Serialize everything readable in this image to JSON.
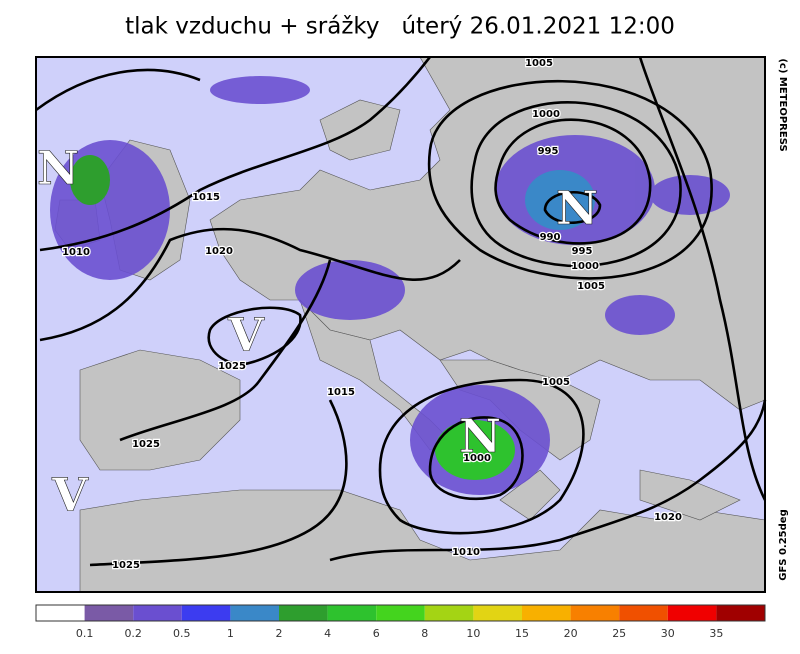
{
  "title": "tlak vzduchu + srážky   úterý 26.01.2021 12:00",
  "credit": "(c) METEOPRESS",
  "model": "GFS 0.25deg",
  "sea_color": "#cfd0fa",
  "land_color": "#c3c3c3",
  "precip_color": "#6a50d0",
  "pressure_centers": [
    "N",
    "N",
    "N",
    "V",
    "V"
  ],
  "isobar_labels": [
    1005,
    1000,
    995,
    990,
    995,
    1000,
    1005,
    1015,
    1010,
    1020,
    1025,
    1015,
    1025,
    1005,
    1000,
    1010,
    1020,
    1025
  ],
  "legend": {
    "colors": [
      "#ffffff",
      "#7a5aa6",
      "#6a4fd0",
      "#3c3cf0",
      "#3a88c8",
      "#2e9e2e",
      "#2ec22e",
      "#44d41e",
      "#a4d414",
      "#e2d414",
      "#f8b000",
      "#f88000",
      "#f05000",
      "#f00000",
      "#a00000"
    ],
    "labels": [
      0.1,
      0.2,
      0.5,
      1,
      2,
      4,
      6,
      8,
      10,
      15,
      20,
      25,
      30,
      35
    ]
  }
}
